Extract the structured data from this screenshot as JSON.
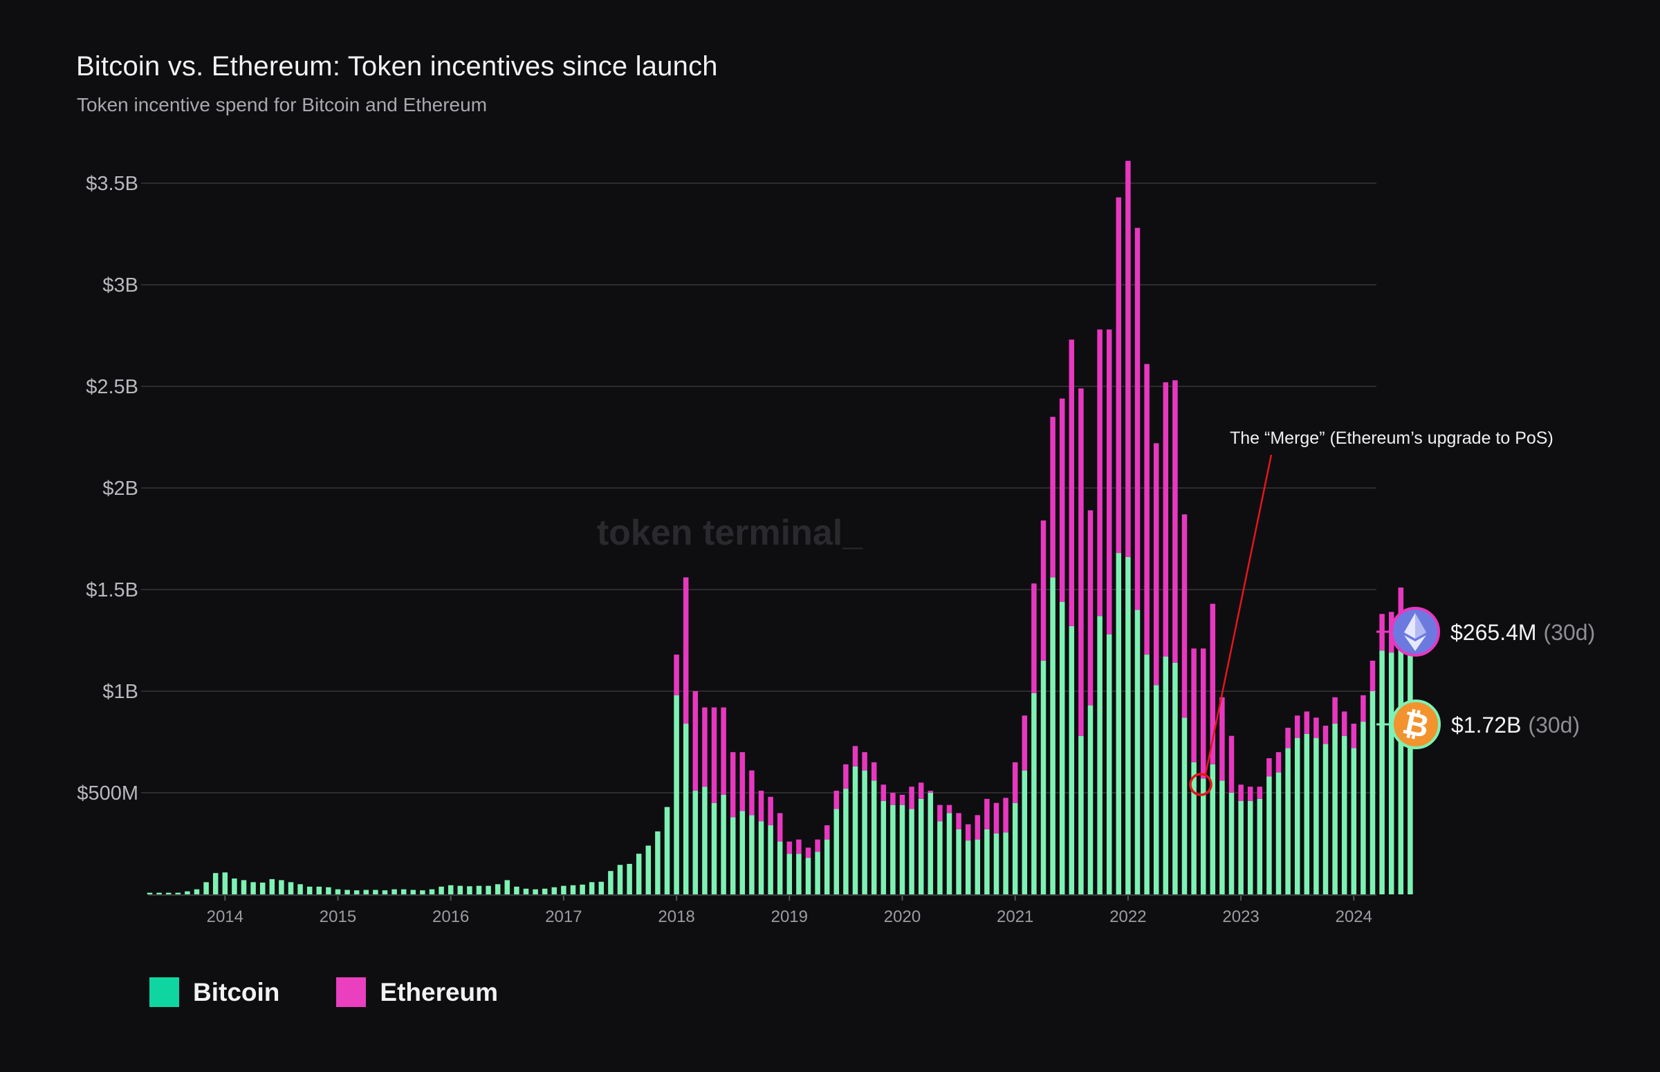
{
  "header": {
    "title": "Bitcoin vs. Ethereum: Token incentives since launch",
    "subtitle": "Token incentive spend for Bitcoin and Ethereum"
  },
  "watermark": "token terminal_",
  "annotation": {
    "text": "The “Merge” (Ethereum’s upgrade to PoS)",
    "month": "2022-09"
  },
  "end_labels": [
    {
      "series": "Ethereum",
      "value": "$265.4M",
      "period": "(30d)",
      "icon": "ethereum-icon"
    },
    {
      "series": "Bitcoin",
      "value": "$1.72B",
      "period": "(30d)",
      "icon": "bitcoin-icon"
    }
  ],
  "legend": [
    {
      "label": "Bitcoin",
      "color": "#0fd6a0"
    },
    {
      "label": "Ethereum",
      "color": "#ea3fbf"
    }
  ],
  "colors": {
    "bitcoin": "#7ef2b4",
    "ethereum": "#e838c0",
    "grid": "#2c2c30",
    "annotation": "#e8141c"
  },
  "chart_data": {
    "type": "bar",
    "stacked": true,
    "title": "Bitcoin vs. Ethereum: Token incentives since launch",
    "subtitle": "Token incentive spend for Bitcoin and Ethereum",
    "xlabel": "",
    "ylabel": "",
    "unit": "$M",
    "ylim": [
      0,
      3600
    ],
    "y_ticks": [
      {
        "value": 500,
        "label": "$500M"
      },
      {
        "value": 1000,
        "label": "$1B"
      },
      {
        "value": 1500,
        "label": "$1.5B"
      },
      {
        "value": 2000,
        "label": "$2B"
      },
      {
        "value": 2500,
        "label": "$2.5B"
      },
      {
        "value": 3000,
        "label": "$3B"
      },
      {
        "value": 3500,
        "label": "$3.5B"
      }
    ],
    "x_ticks": [
      "2014",
      "2015",
      "2016",
      "2017",
      "2018",
      "2019",
      "2020",
      "2021",
      "2022",
      "2023",
      "2024"
    ],
    "start_month": "2013-05",
    "grid": "horizontal",
    "legend_position": "bottom-left",
    "series": [
      {
        "name": "Bitcoin",
        "values": [
          8,
          8,
          8,
          8,
          15,
          25,
          60,
          105,
          108,
          78,
          70,
          60,
          58,
          75,
          70,
          60,
          50,
          38,
          38,
          35,
          25,
          22,
          20,
          22,
          22,
          20,
          25,
          25,
          22,
          20,
          25,
          38,
          45,
          42,
          40,
          42,
          42,
          50,
          70,
          38,
          28,
          25,
          28,
          35,
          42,
          45,
          48,
          60,
          62,
          115,
          145,
          150,
          200,
          240,
          310,
          430,
          980,
          840,
          510,
          530,
          450,
          490,
          380,
          410,
          390,
          360,
          340,
          260,
          200,
          200,
          180,
          210,
          270,
          420,
          520,
          630,
          610,
          560,
          460,
          440,
          440,
          420,
          470,
          500,
          360,
          400,
          320,
          265,
          270,
          320,
          300,
          305,
          450,
          610,
          990,
          1150,
          1560,
          1440,
          1320,
          780,
          930,
          1370,
          1280,
          1680,
          1660,
          1400,
          1180,
          1030,
          1170,
          1140,
          870,
          650,
          570,
          640,
          560,
          500,
          460,
          460,
          470,
          580,
          600,
          720,
          770,
          790,
          770,
          740,
          840,
          780,
          720,
          850,
          1000,
          1200,
          1190,
          1310,
          1180
        ]
      },
      {
        "name": "Ethereum",
        "values": [
          0,
          0,
          0,
          0,
          0,
          0,
          0,
          0,
          0,
          0,
          0,
          0,
          0,
          0,
          0,
          0,
          0,
          0,
          0,
          0,
          0,
          0,
          0,
          0,
          0,
          0,
          0,
          0,
          0,
          0,
          0,
          0,
          0,
          0,
          0,
          0,
          0,
          0,
          0,
          0,
          0,
          0,
          0,
          0,
          0,
          0,
          0,
          0,
          0,
          0,
          0,
          0,
          0,
          0,
          0,
          0,
          200,
          720,
          490,
          390,
          470,
          430,
          320,
          290,
          220,
          150,
          140,
          140,
          60,
          70,
          50,
          60,
          70,
          90,
          120,
          100,
          90,
          90,
          80,
          60,
          50,
          110,
          80,
          10,
          80,
          40,
          80,
          80,
          120,
          150,
          150,
          170,
          200,
          270,
          540,
          690,
          790,
          1000,
          1410,
          1710,
          960,
          1410,
          1500,
          1750,
          1950,
          1880,
          1430,
          1190,
          1350,
          1390,
          1000,
          560,
          640,
          790,
          410,
          280,
          80,
          70,
          60,
          90,
          100,
          100,
          110,
          110,
          100,
          90,
          130,
          120,
          120,
          130,
          150,
          180,
          200,
          200,
          200
        ]
      }
    ]
  }
}
